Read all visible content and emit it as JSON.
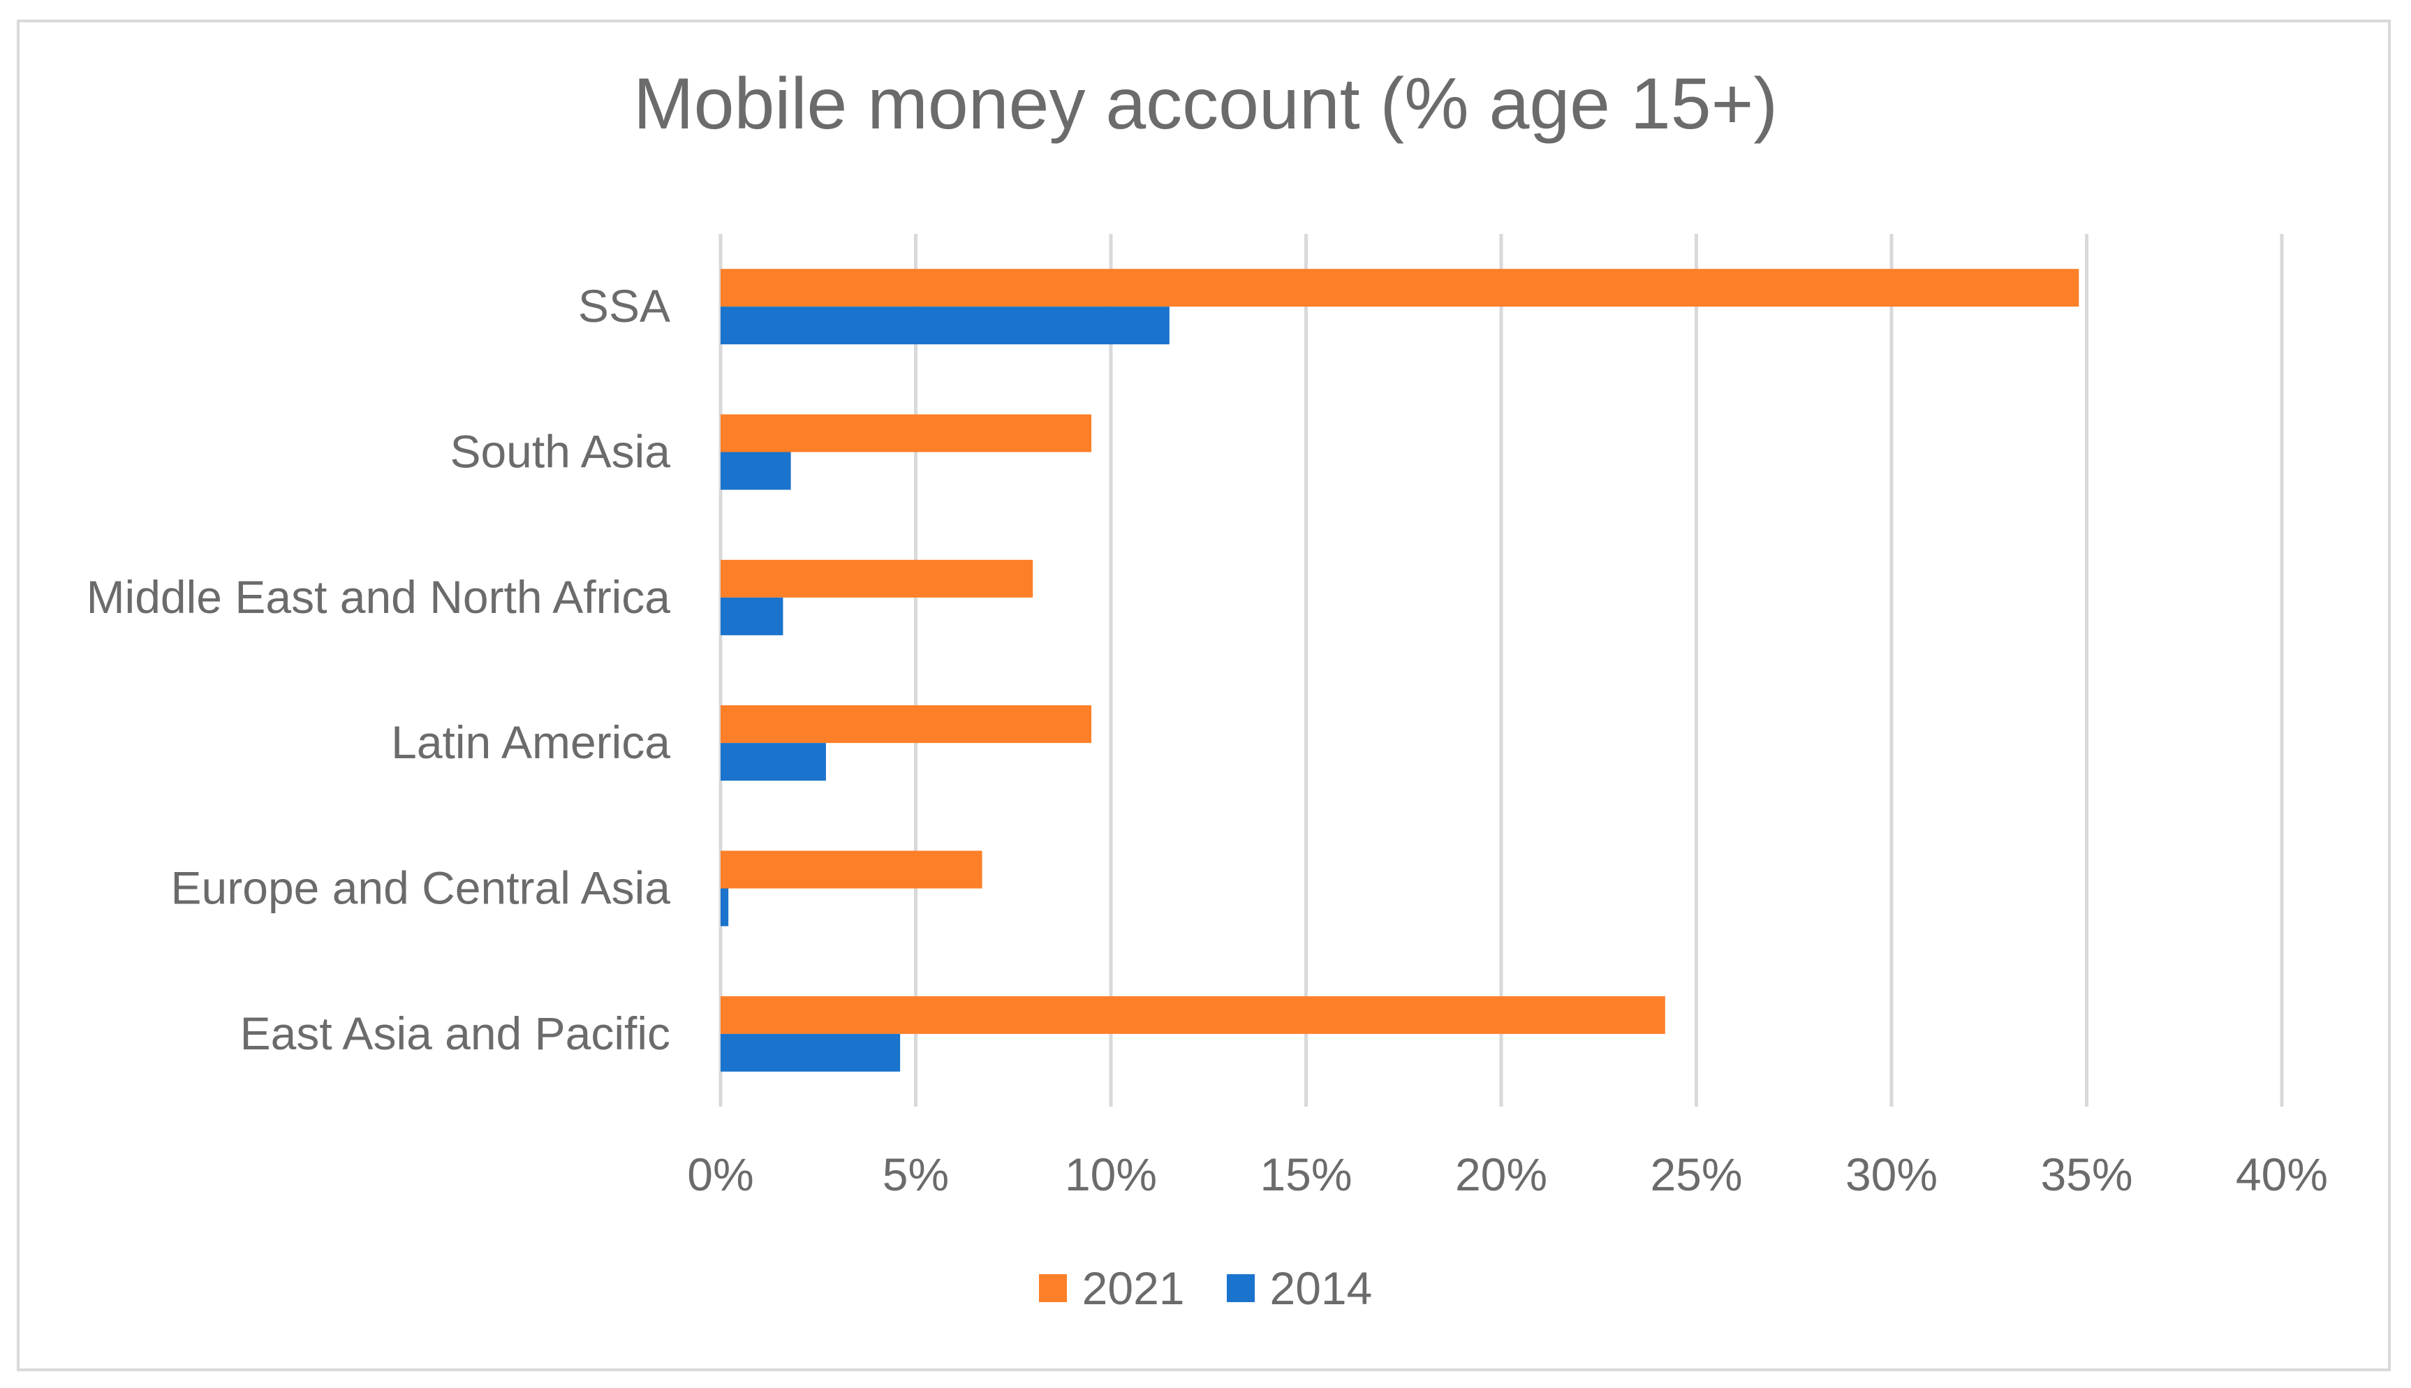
{
  "chart_data": {
    "type": "bar",
    "orientation": "horizontal",
    "title": "Mobile money account (% age 15+)",
    "xlabel": "",
    "ylabel": "",
    "categories": [
      "SSA",
      "South Asia",
      "Middle East and North Africa",
      "Latin America",
      "Europe and Central Asia",
      "East Asia and Pacific"
    ],
    "series": [
      {
        "name": "2021",
        "color": "#fd7f28",
        "values": [
          34.8,
          9.5,
          8.0,
          9.5,
          6.7,
          24.2
        ]
      },
      {
        "name": "2014",
        "color": "#1a73cc",
        "values": [
          11.5,
          1.8,
          1.6,
          2.7,
          0.2,
          4.6
        ]
      }
    ],
    "xlim": [
      0,
      40
    ],
    "xticks": [
      "0%",
      "5%",
      "10%",
      "15%",
      "20%",
      "25%",
      "30%",
      "35%",
      "40%"
    ],
    "grid": true,
    "legend_position": "bottom"
  }
}
